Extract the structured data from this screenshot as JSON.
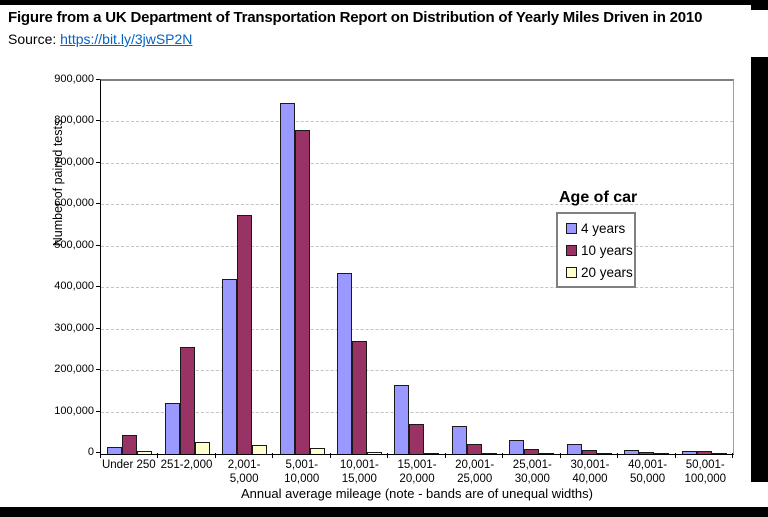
{
  "header": {
    "title": "Figure from a UK Department of Transportation Report on Distribution of Yearly Miles Driven in 2010",
    "source_label": "Source:",
    "source_link": "https://bit.ly/3jwSP2N"
  },
  "chart_data": {
    "type": "bar",
    "title": "",
    "xlabel": "Annual average mileage (note - bands are of unequal widths)",
    "ylabel": "Number of paired tests",
    "ylim": [
      0,
      900000
    ],
    "ytick_step": 100000,
    "ytick_labels": [
      "0",
      "100,000",
      "200,000",
      "300,000",
      "400,000",
      "500,000",
      "600,000",
      "700,000",
      "800,000",
      "900,000"
    ],
    "grid": "horizontal-dashed",
    "legend_position": "right-inside",
    "legend_title": "Age of car",
    "categories": [
      "Under 250",
      "251-2,000",
      "2,001-5,000",
      "5,001-\n10,000",
      "10,001-\n15,000",
      "15,001-\n20,000",
      "20,001-\n25,000",
      "25,001-\n30,000",
      "30,001-\n40,000",
      "40,001-\n50,000",
      "50,001-\n100,000"
    ],
    "series": [
      {
        "name": "4 years",
        "color": "#9999FF",
        "values": [
          17000,
          124000,
          422000,
          848000,
          437000,
          166000,
          68000,
          33000,
          24000,
          10000,
          8000
        ]
      },
      {
        "name": "10 years",
        "color": "#993366",
        "values": [
          47000,
          259000,
          576000,
          781000,
          272000,
          73000,
          23000,
          11000,
          9000,
          5000,
          8000
        ]
      },
      {
        "name": "20 years",
        "color": "#FFFFCC",
        "values": [
          8000,
          28000,
          22000,
          14000,
          5000,
          2000,
          1500,
          1000,
          1000,
          500,
          500
        ]
      }
    ]
  }
}
